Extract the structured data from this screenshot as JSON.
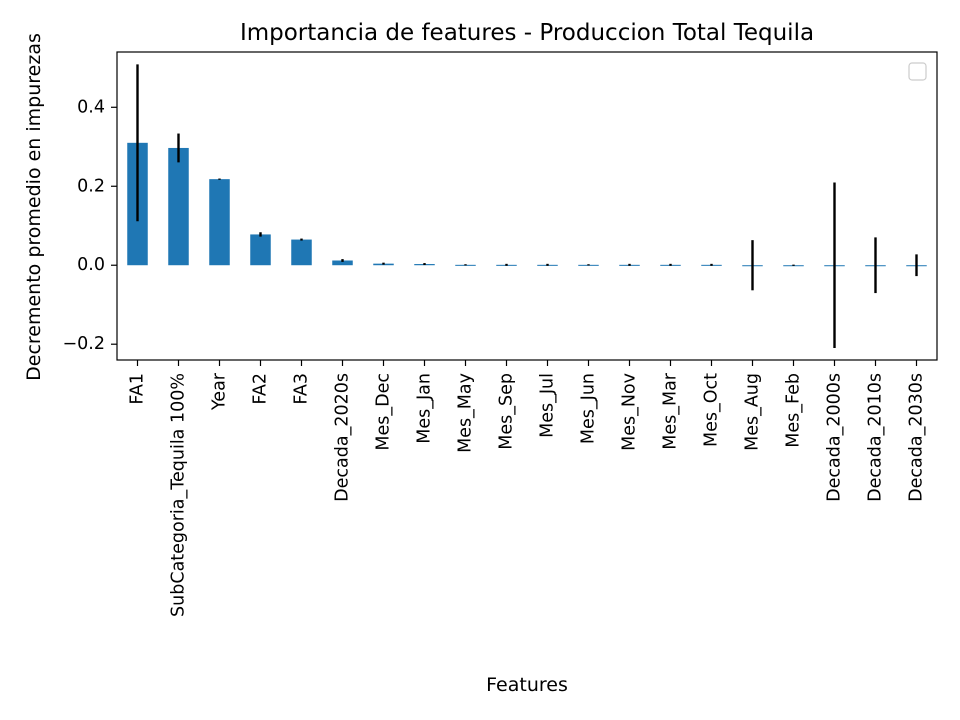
{
  "chart_data": {
    "type": "bar",
    "title": "Importancia de features - Produccion Total Tequila",
    "xlabel": "Features",
    "ylabel": "Decremento promedio en impurezas",
    "ylim": [
      -0.24,
      0.54
    ],
    "yticks": [
      -0.2,
      0.0,
      0.2,
      0.4
    ],
    "ytick_labels": [
      "−0.2",
      "0.0",
      "0.2",
      "0.4"
    ],
    "categories": [
      "FA1",
      "SubCategoria_Tequila 100%",
      "Year",
      "FA2",
      "FA3",
      "Decada_2020s",
      "Mes_Dec",
      "Mes_Jan",
      "Mes_May",
      "Mes_Sep",
      "Mes_Jul",
      "Mes_Jun",
      "Mes_Nov",
      "Mes_Mar",
      "Mes_Oct",
      "Mes_Aug",
      "Mes_Feb",
      "Decada_2000s",
      "Decada_2010s",
      "Decada_2030s"
    ],
    "values": [
      0.31,
      0.297,
      0.218,
      0.078,
      0.065,
      0.012,
      0.004,
      0.003,
      0.001,
      0.001,
      0.001,
      0.001,
      0.001,
      0.001,
      0.001,
      0.0,
      0.0,
      0.0,
      0.0,
      0.0
    ],
    "errors": [
      0.197,
      0.035,
      0.0,
      0.004,
      0.001,
      0.002,
      0.001,
      0.001,
      0.0,
      0.001,
      0.001,
      0.0,
      0.001,
      0.001,
      0.001,
      0.062,
      0.0,
      0.208,
      0.069,
      0.026
    ],
    "bar_color": "#1f77b4",
    "error_color": "#000000",
    "grid": false,
    "legend": {
      "position": "top-right",
      "entries": []
    }
  }
}
